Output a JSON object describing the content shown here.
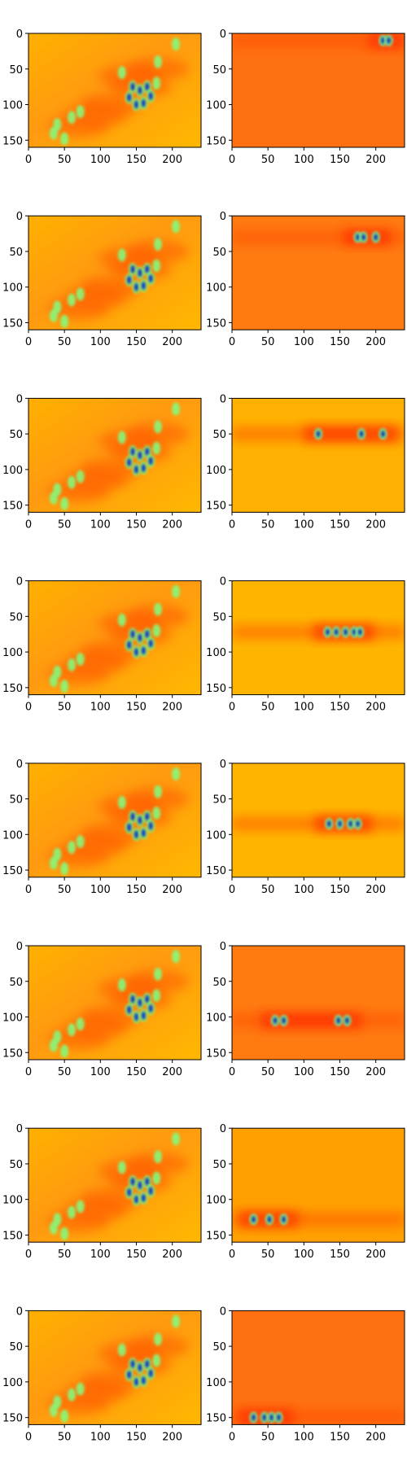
{
  "chart_data": {
    "type": "heatmap",
    "colormap": "jet",
    "grid": false,
    "layout": {
      "rows": 8,
      "cols": 2
    },
    "axes": {
      "xlim": [
        0,
        240
      ],
      "ylim": [
        160,
        0
      ],
      "x_ticks": [
        0,
        50,
        100,
        150,
        200
      ],
      "y_ticks": [
        0,
        50,
        100,
        150
      ]
    },
    "tick_labels": {
      "x": [
        "0",
        "50",
        "100",
        "150",
        "200"
      ],
      "y": [
        "0",
        "50",
        "100",
        "150"
      ]
    },
    "panels_left": [
      {
        "index": 0,
        "bright_row": null
      },
      {
        "index": 1,
        "bright_row": null
      },
      {
        "index": 2,
        "bright_row": null
      },
      {
        "index": 3,
        "bright_row": null
      },
      {
        "index": 4,
        "bright_row": null
      },
      {
        "index": 5,
        "bright_row": null
      },
      {
        "index": 6,
        "bright_row": null
      },
      {
        "index": 7,
        "bright_row": null
      }
    ],
    "panels_right": [
      {
        "index": 0,
        "background": "#ff7010",
        "band_y": 10,
        "spots_x": [
          210,
          218
        ]
      },
      {
        "index": 1,
        "background": "#ff7a10",
        "band_y": 30,
        "spots_x": [
          175,
          183,
          200
        ]
      },
      {
        "index": 2,
        "background": "#ffb000",
        "band_y": 50,
        "spots_x": [
          120,
          180,
          210
        ]
      },
      {
        "index": 3,
        "background": "#ffb400",
        "band_y": 72,
        "spots_x": [
          133,
          145,
          158,
          170,
          178
        ]
      },
      {
        "index": 4,
        "background": "#ffb400",
        "band_y": 85,
        "spots_x": [
          135,
          150,
          165,
          175
        ]
      },
      {
        "index": 5,
        "background": "#ff7a10",
        "band_y": 105,
        "spots_x": [
          60,
          72,
          148,
          160
        ]
      },
      {
        "index": 6,
        "background": "#ffa000",
        "band_y": 128,
        "spots_x": [
          30,
          52,
          72
        ]
      },
      {
        "index": 7,
        "background": "#ff7010",
        "band_y": 150,
        "spots_x": [
          30,
          45,
          55,
          65
        ]
      }
    ]
  }
}
